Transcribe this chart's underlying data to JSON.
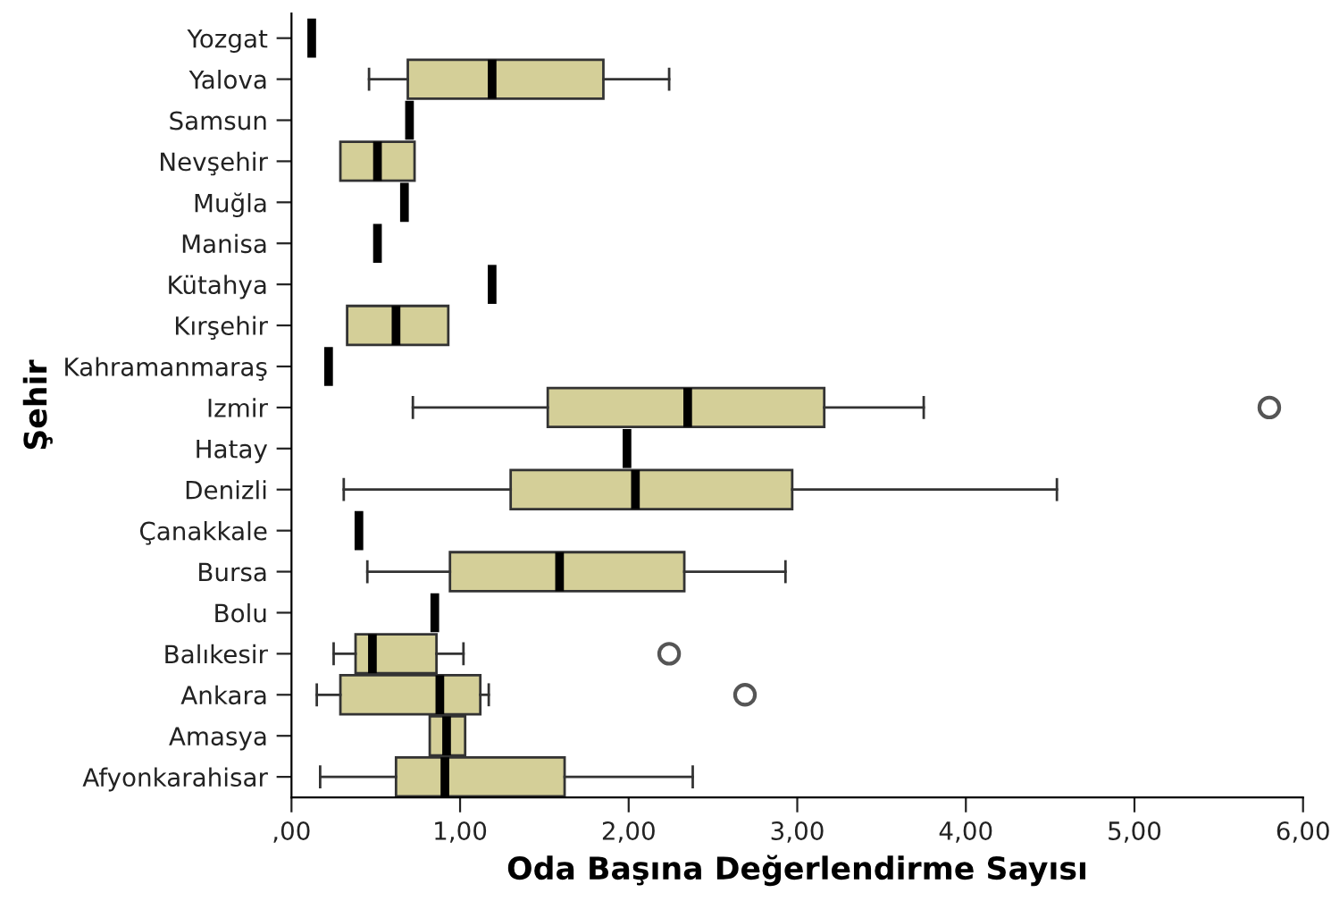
{
  "chart_data": {
    "type": "box",
    "orientation": "horizontal",
    "xlabel": "Oda Başına Değerlendirme Sayısı",
    "ylabel": "Şehir",
    "colors": [
      "#000000",
      "#d4cf98",
      "#000000",
      "#d4cf98",
      "#000000",
      "#000000",
      "#000000",
      "#d4cf98",
      "#000000",
      "#d4cf98",
      "#000000",
      "#d4cf98",
      "#000000",
      "#d4cf98",
      "#000000",
      "#d4cf98",
      "#d4cf98",
      "#d4cf98",
      "#d4cf98"
    ],
    "categories": [
      "Yozgat",
      "Yalova",
      "Samsun",
      "Nevşehir",
      "Muğla",
      "Manisa",
      "Kütahya",
      "Kırşehir",
      "Kahramanmaraş",
      "Izmir",
      "Hatay",
      "Denizli",
      "Çanakkale",
      "Bursa",
      "Bolu",
      "Balıkesir",
      "Ankara",
      "Amasya",
      "Afyonkarahisar"
    ],
    "boxes": [
      {
        "low": 0.12,
        "q1": 0.12,
        "median": 0.12,
        "q3": 0.12,
        "high": 0.12
      },
      {
        "low": 0.46,
        "q1": 0.69,
        "median": 1.19,
        "q3": 1.85,
        "high": 2.24
      },
      {
        "low": 0.7,
        "q1": 0.7,
        "median": 0.7,
        "q3": 0.7,
        "high": 0.7
      },
      {
        "low": 0.29,
        "q1": 0.29,
        "median": 0.51,
        "q3": 0.73,
        "high": 0.73
      },
      {
        "low": 0.67,
        "q1": 0.67,
        "median": 0.67,
        "q3": 0.67,
        "high": 0.67
      },
      {
        "low": 0.51,
        "q1": 0.51,
        "median": 0.51,
        "q3": 0.51,
        "high": 0.51
      },
      {
        "low": 1.19,
        "q1": 1.19,
        "median": 1.19,
        "q3": 1.19,
        "high": 1.19
      },
      {
        "low": 0.33,
        "q1": 0.33,
        "median": 0.62,
        "q3": 0.93,
        "high": 0.93
      },
      {
        "low": 0.22,
        "q1": 0.22,
        "median": 0.22,
        "q3": 0.22,
        "high": 0.22
      },
      {
        "low": 0.72,
        "q1": 1.52,
        "median": 2.35,
        "q3": 3.16,
        "high": 3.75,
        "outliers": [
          5.8
        ]
      },
      {
        "low": 1.99,
        "q1": 1.99,
        "median": 1.99,
        "q3": 1.99,
        "high": 1.99
      },
      {
        "low": 0.31,
        "q1": 1.3,
        "median": 2.04,
        "q3": 2.97,
        "high": 4.54
      },
      {
        "low": 0.4,
        "q1": 0.4,
        "median": 0.4,
        "q3": 0.4,
        "high": 0.4
      },
      {
        "low": 0.45,
        "q1": 0.94,
        "median": 1.59,
        "q3": 2.33,
        "high": 2.93
      },
      {
        "low": 0.85,
        "q1": 0.85,
        "median": 0.85,
        "q3": 0.85,
        "high": 0.85
      },
      {
        "low": 0.25,
        "q1": 0.38,
        "median": 0.48,
        "q3": 0.86,
        "high": 1.02,
        "outliers": [
          2.24
        ]
      },
      {
        "low": 0.15,
        "q1": 0.29,
        "median": 0.88,
        "q3": 1.12,
        "high": 1.17,
        "outliers": [
          2.69
        ]
      },
      {
        "low": 0.82,
        "q1": 0.82,
        "median": 0.92,
        "q3": 1.03,
        "high": 1.03
      },
      {
        "low": 0.17,
        "q1": 0.62,
        "median": 0.91,
        "q3": 1.62,
        "high": 2.38
      }
    ],
    "xlim": [
      0,
      6
    ],
    "xticks": [
      {
        "value": 0,
        "label": ",00"
      },
      {
        "value": 1,
        "label": "1,00"
      },
      {
        "value": 2,
        "label": "2,00"
      },
      {
        "value": 3,
        "label": "3,00"
      },
      {
        "value": 4,
        "label": "4,00"
      },
      {
        "value": 5,
        "label": "5,00"
      },
      {
        "value": 6,
        "label": "6,00"
      }
    ],
    "grid": false,
    "legend": false
  }
}
